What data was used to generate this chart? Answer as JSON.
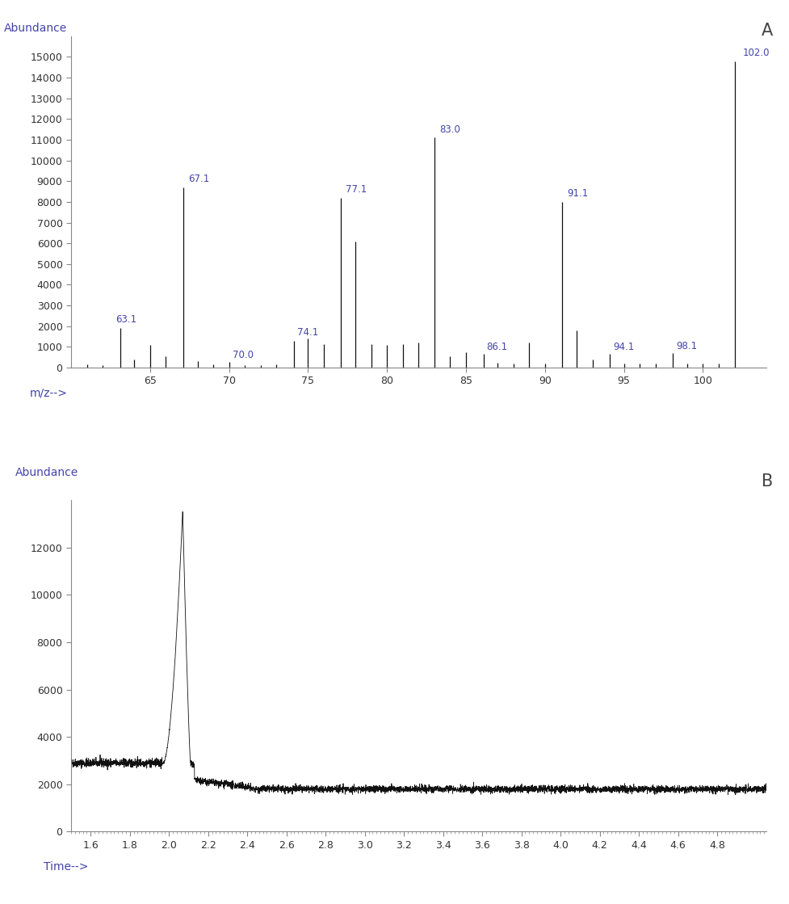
{
  "panel_A": {
    "label": "A",
    "ylabel": "Abundance",
    "xlabel": "m/z-->",
    "xlim": [
      60,
      104
    ],
    "ylim": [
      0,
      16000
    ],
    "yticks": [
      0,
      1000,
      2000,
      3000,
      4000,
      5000,
      6000,
      7000,
      8000,
      9000,
      10000,
      11000,
      12000,
      13000,
      14000,
      15000
    ],
    "xticks": [
      65,
      70,
      75,
      80,
      85,
      90,
      95,
      100
    ],
    "peaks": [
      {
        "mz": 61.0,
        "intensity": 150
      },
      {
        "mz": 62.0,
        "intensity": 120
      },
      {
        "mz": 63.1,
        "intensity": 1900,
        "label": "63.1"
      },
      {
        "mz": 64.0,
        "intensity": 400
      },
      {
        "mz": 65.0,
        "intensity": 1100
      },
      {
        "mz": 66.0,
        "intensity": 550
      },
      {
        "mz": 67.1,
        "intensity": 8700,
        "label": "67.1"
      },
      {
        "mz": 68.0,
        "intensity": 300
      },
      {
        "mz": 69.0,
        "intensity": 170
      },
      {
        "mz": 70.0,
        "intensity": 280,
        "label": "70.0"
      },
      {
        "mz": 71.0,
        "intensity": 130
      },
      {
        "mz": 72.0,
        "intensity": 110
      },
      {
        "mz": 73.0,
        "intensity": 160
      },
      {
        "mz": 74.1,
        "intensity": 1300,
        "label": "74.1"
      },
      {
        "mz": 75.0,
        "intensity": 1400
      },
      {
        "mz": 76.0,
        "intensity": 1150
      },
      {
        "mz": 77.1,
        "intensity": 8200,
        "label": "77.1"
      },
      {
        "mz": 78.0,
        "intensity": 6100
      },
      {
        "mz": 79.0,
        "intensity": 1150
      },
      {
        "mz": 80.0,
        "intensity": 1100
      },
      {
        "mz": 81.0,
        "intensity": 1150
      },
      {
        "mz": 82.0,
        "intensity": 1200
      },
      {
        "mz": 83.0,
        "intensity": 11100,
        "label": "83.0"
      },
      {
        "mz": 84.0,
        "intensity": 550
      },
      {
        "mz": 85.0,
        "intensity": 750
      },
      {
        "mz": 86.1,
        "intensity": 650,
        "label": "86.1"
      },
      {
        "mz": 87.0,
        "intensity": 230
      },
      {
        "mz": 88.0,
        "intensity": 200
      },
      {
        "mz": 89.0,
        "intensity": 1200
      },
      {
        "mz": 90.0,
        "intensity": 200
      },
      {
        "mz": 91.1,
        "intensity": 8000,
        "label": "91.1"
      },
      {
        "mz": 92.0,
        "intensity": 1800
      },
      {
        "mz": 93.0,
        "intensity": 400
      },
      {
        "mz": 94.1,
        "intensity": 650,
        "label": "94.1"
      },
      {
        "mz": 95.0,
        "intensity": 200
      },
      {
        "mz": 96.0,
        "intensity": 200
      },
      {
        "mz": 97.0,
        "intensity": 200
      },
      {
        "mz": 98.1,
        "intensity": 700,
        "label": "98.1"
      },
      {
        "mz": 99.0,
        "intensity": 200
      },
      {
        "mz": 100.0,
        "intensity": 200
      },
      {
        "mz": 101.0,
        "intensity": 200
      },
      {
        "mz": 102.0,
        "intensity": 14800,
        "label": "102.0"
      }
    ],
    "label_color": "#4444aa",
    "line_color": "#111111",
    "bg_color": "#ffffff"
  },
  "panel_B": {
    "label": "B",
    "ylabel": "Abundance",
    "xlabel": "Time-->",
    "xlim": [
      1.5,
      5.05
    ],
    "ylim": [
      0,
      14000
    ],
    "yticks": [
      0,
      2000,
      4000,
      6000,
      8000,
      10000,
      12000
    ],
    "xticks": [
      1.6,
      1.8,
      2.0,
      2.2,
      2.4,
      2.6,
      2.8,
      3.0,
      3.2,
      3.4,
      3.6,
      3.8,
      4.0,
      4.2,
      4.4,
      4.6,
      4.8
    ],
    "label_color": "#4444aa",
    "line_color": "#111111",
    "bg_color": "#ffffff"
  },
  "text_color": "#4444aa",
  "panel_label_color": "#444444",
  "fig_bg": "#ffffff"
}
